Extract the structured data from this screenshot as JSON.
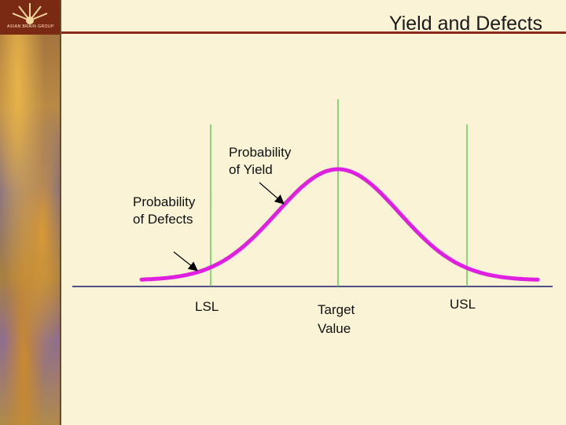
{
  "slide": {
    "title": "Yield and Defects",
    "logo_text": "ASIAN BRAIN GROUP"
  },
  "annotations": {
    "yield_label_line1": "Probability",
    "yield_label_line2": "of Yield",
    "defects_label_line1": "Probability",
    "defects_label_line2": "of Defects"
  },
  "markers": {
    "lsl": "LSL",
    "target_line1": "Target",
    "target_line2": "Value",
    "usl": "USL"
  },
  "colors": {
    "curve": "#e020e0",
    "spec_lines": "#3ec43e",
    "baseline": "#1a1a6a",
    "title_rule": "#8b2a1a"
  }
}
